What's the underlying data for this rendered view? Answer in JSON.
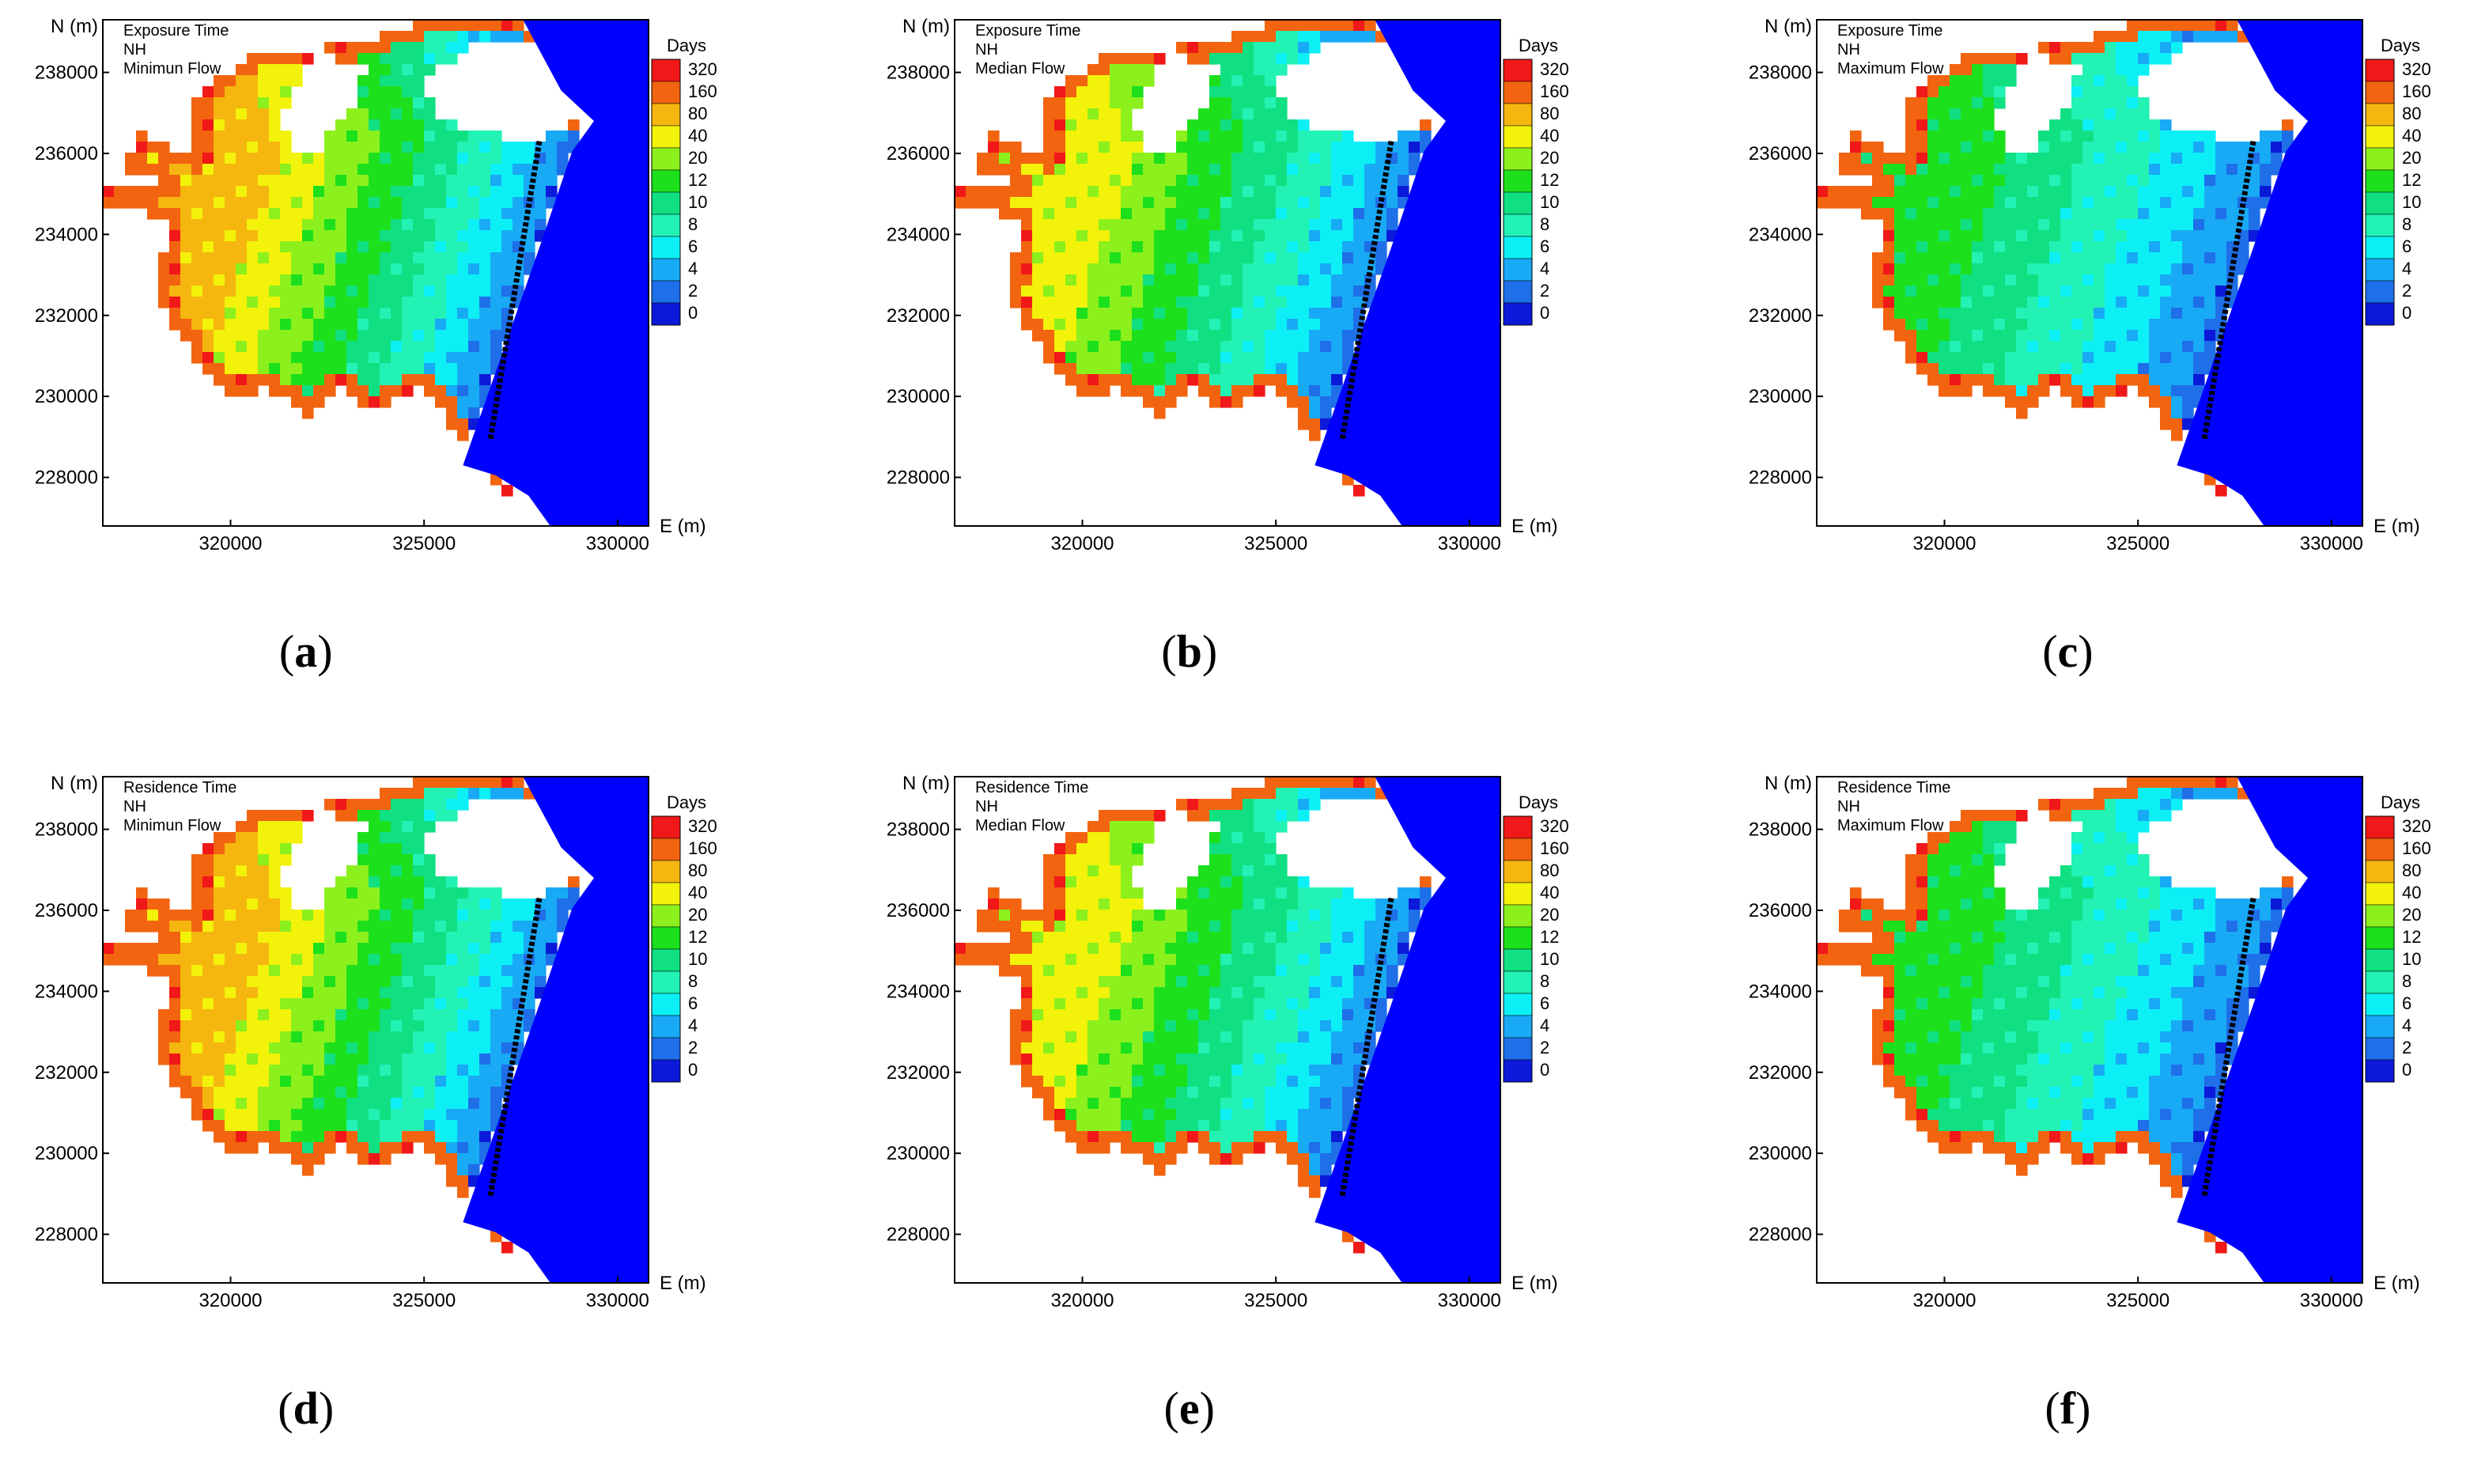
{
  "colors": {
    "scale": [
      "#0b19d9",
      "#1e6fe8",
      "#18aaf5",
      "#0cf0f5",
      "#22f2b4",
      "#10e082",
      "#1de01d",
      "#8cf01c",
      "#f2f20a",
      "#f5b60f",
      "#f26410",
      "#f01818"
    ],
    "ocean": "#0000ff",
    "frame": "#000000"
  },
  "chart_data": [
    {
      "type": "heatmap",
      "caption": "a",
      "annotation": [
        "Exposure Time",
        "NH",
        "Minimun Flow"
      ],
      "xlabel": "E (m)",
      "ylabel": "N (m)",
      "xlim": [
        316700,
        330800
      ],
      "ylim": [
        226800,
        239300
      ],
      "xticks": [
        320000,
        325000,
        330000
      ],
      "yticks": [
        228000,
        230000,
        232000,
        234000,
        236000,
        238000
      ],
      "legend_title": "Days",
      "legend_levels": [
        "320",
        "160",
        "80",
        "40",
        "20",
        "12",
        "10",
        "8",
        "6",
        "4",
        "2",
        "0"
      ],
      "flow_level": 0
    },
    {
      "type": "heatmap",
      "caption": "b",
      "annotation": [
        "Exposure Time",
        "NH",
        "Median Flow"
      ],
      "xlabel": "E (m)",
      "ylabel": "N (m)",
      "xlim": [
        316700,
        330800
      ],
      "ylim": [
        226800,
        239300
      ],
      "xticks": [
        320000,
        325000,
        330000
      ],
      "yticks": [
        228000,
        230000,
        232000,
        234000,
        236000,
        238000
      ],
      "legend_title": "Days",
      "legend_levels": [
        "320",
        "160",
        "80",
        "40",
        "20",
        "12",
        "10",
        "8",
        "6",
        "4",
        "2",
        "0"
      ],
      "flow_level": 1
    },
    {
      "type": "heatmap",
      "caption": "c",
      "annotation": [
        "Exposure Time",
        "NH",
        "Maximum Flow"
      ],
      "xlabel": "E (m)",
      "ylabel": "N (m)",
      "xlim": [
        316700,
        330800
      ],
      "ylim": [
        226800,
        239300
      ],
      "xticks": [
        320000,
        325000,
        330000
      ],
      "yticks": [
        228000,
        230000,
        232000,
        234000,
        236000,
        238000
      ],
      "legend_title": "Days",
      "legend_levels": [
        "320",
        "160",
        "80",
        "40",
        "20",
        "12",
        "10",
        "8",
        "6",
        "4",
        "2",
        "0"
      ],
      "flow_level": 2
    },
    {
      "type": "heatmap",
      "caption": "d",
      "annotation": [
        "Residence Time",
        "NH",
        "Minimun Flow"
      ],
      "xlabel": "E (m)",
      "ylabel": "N (m)",
      "xlim": [
        316700,
        330800
      ],
      "ylim": [
        226800,
        239300
      ],
      "xticks": [
        320000,
        325000,
        330000
      ],
      "yticks": [
        228000,
        230000,
        232000,
        234000,
        236000,
        238000
      ],
      "legend_title": "Days",
      "legend_levels": [
        "320",
        "160",
        "80",
        "40",
        "20",
        "12",
        "10",
        "8",
        "6",
        "4",
        "2",
        "0"
      ],
      "flow_level": 0
    },
    {
      "type": "heatmap",
      "caption": "e",
      "annotation": [
        "Residence Time",
        "NH",
        "Median Flow"
      ],
      "xlabel": "E (m)",
      "ylabel": "N (m)",
      "xlim": [
        316700,
        330800
      ],
      "ylim": [
        226800,
        239300
      ],
      "xticks": [
        320000,
        325000,
        330000
      ],
      "yticks": [
        228000,
        230000,
        232000,
        234000,
        236000,
        238000
      ],
      "legend_title": "Days",
      "legend_levels": [
        "320",
        "160",
        "80",
        "40",
        "20",
        "12",
        "10",
        "8",
        "6",
        "4",
        "2",
        "0"
      ],
      "flow_level": 1
    },
    {
      "type": "heatmap",
      "caption": "f",
      "annotation": [
        "Residence Time",
        "NH",
        "Maximum Flow"
      ],
      "xlabel": "E (m)",
      "ylabel": "N (m)",
      "xlim": [
        316700,
        330800
      ],
      "ylim": [
        226800,
        239300
      ],
      "xticks": [
        320000,
        325000,
        330000
      ],
      "yticks": [
        228000,
        230000,
        232000,
        234000,
        236000,
        238000
      ],
      "legend_title": "Days",
      "legend_levels": [
        "320",
        "160",
        "80",
        "40",
        "20",
        "12",
        "10",
        "8",
        "6",
        "4",
        "2",
        "0"
      ],
      "flow_level": 2
    }
  ]
}
